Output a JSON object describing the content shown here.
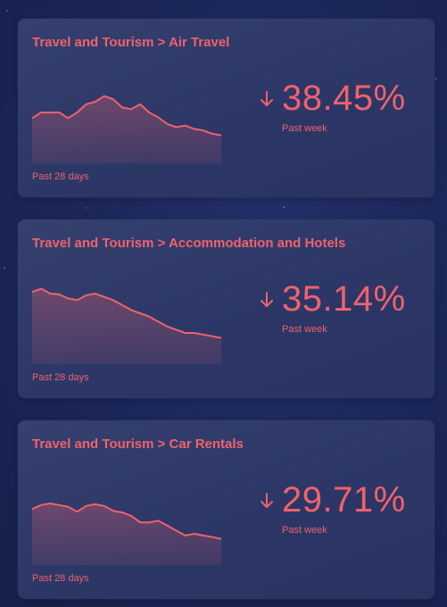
{
  "theme": {
    "accent": "#f0626c",
    "background": "#1b2657",
    "card": "#2f3a6a"
  },
  "cards": [
    {
      "title": "Travel and Tourism > Air Travel",
      "value": "38.45%",
      "trend": "down",
      "trend_icon": "arrow-down-icon",
      "value_label": "Past week",
      "period_label": "Past 28 days",
      "sparkline": [
        55,
        62,
        62,
        62,
        55,
        62,
        72,
        75,
        82,
        78,
        68,
        66,
        72,
        62,
        56,
        48,
        44,
        46,
        42,
        40,
        36,
        34
      ]
    },
    {
      "title": "Travel and Tourism > Accommodation and Hotels",
      "value": "35.14%",
      "trend": "down",
      "trend_icon": "arrow-down-icon",
      "value_label": "Past week",
      "period_label": "Past 28 days",
      "sparkline": [
        88,
        92,
        86,
        85,
        80,
        78,
        84,
        86,
        82,
        78,
        72,
        66,
        62,
        58,
        52,
        46,
        42,
        38,
        38,
        36,
        34,
        32
      ]
    },
    {
      "title": "Travel and Tourism > Car Rentals",
      "value": "29.71%",
      "trend": "down",
      "trend_icon": "arrow-down-icon",
      "value_label": "Past week",
      "period_label": "Past 28 days",
      "sparkline": [
        68,
        73,
        75,
        73,
        71,
        65,
        72,
        74,
        72,
        66,
        64,
        60,
        52,
        52,
        54,
        48,
        42,
        36,
        38,
        36,
        34,
        32
      ]
    }
  ]
}
